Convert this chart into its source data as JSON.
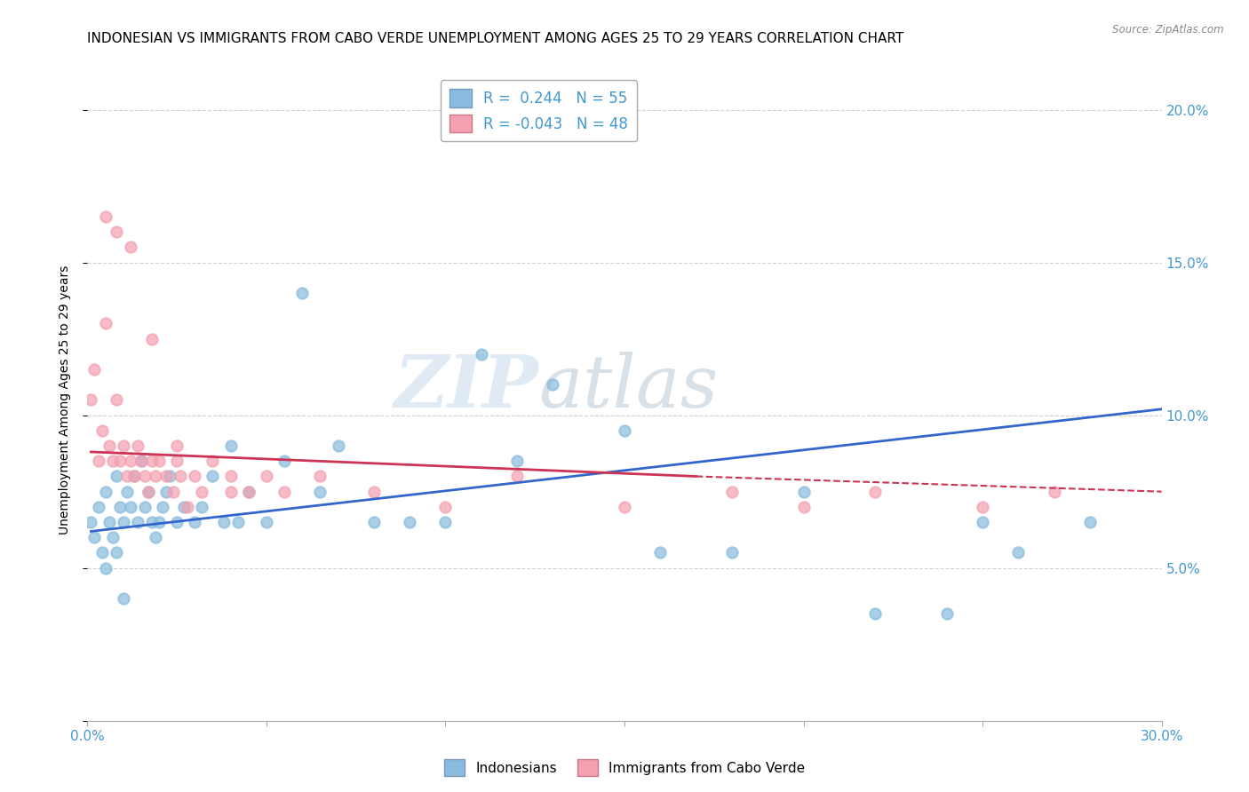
{
  "title": "INDONESIAN VS IMMIGRANTS FROM CABO VERDE UNEMPLOYMENT AMONG AGES 25 TO 29 YEARS CORRELATION CHART",
  "source": "Source: ZipAtlas.com",
  "xlabel_legend_1": "Indonesians",
  "xlabel_legend_2": "Immigrants from Cabo Verde",
  "ylabel": "Unemployment Among Ages 25 to 29 years",
  "r1": 0.244,
  "n1": 55,
  "r2": -0.043,
  "n2": 48,
  "color1": "#88bbdd",
  "color2": "#f4a0b0",
  "trendline1_color": "#3366cc",
  "trendline2_color": "#cc3355",
  "xlim": [
    0.0,
    0.3
  ],
  "ylim": [
    0.0,
    0.21
  ],
  "yticks": [
    0.0,
    0.05,
    0.1,
    0.15,
    0.2
  ],
  "ytick_labels_right": [
    "",
    "5.0%",
    "10.0%",
    "15.0%",
    "20.0%"
  ],
  "xticks": [
    0.0,
    0.05,
    0.1,
    0.15,
    0.2,
    0.25,
    0.3
  ],
  "xtick_labels": [
    "0.0%",
    "",
    "",
    "",
    "",
    "",
    "30.0%"
  ],
  "watermark_zip": "ZIP",
  "watermark_atlas": "atlas",
  "indonesians_x": [
    0.001,
    0.002,
    0.003,
    0.004,
    0.005,
    0.005,
    0.006,
    0.007,
    0.008,
    0.008,
    0.009,
    0.01,
    0.01,
    0.011,
    0.012,
    0.013,
    0.014,
    0.015,
    0.016,
    0.017,
    0.018,
    0.019,
    0.02,
    0.021,
    0.022,
    0.023,
    0.025,
    0.027,
    0.03,
    0.032,
    0.035,
    0.038,
    0.04,
    0.042,
    0.045,
    0.05,
    0.055,
    0.06,
    0.065,
    0.07,
    0.08,
    0.09,
    0.1,
    0.11,
    0.12,
    0.13,
    0.15,
    0.16,
    0.18,
    0.2,
    0.22,
    0.24,
    0.25,
    0.26,
    0.28
  ],
  "indonesians_y": [
    0.065,
    0.06,
    0.07,
    0.055,
    0.075,
    0.05,
    0.065,
    0.06,
    0.08,
    0.055,
    0.07,
    0.065,
    0.04,
    0.075,
    0.07,
    0.08,
    0.065,
    0.085,
    0.07,
    0.075,
    0.065,
    0.06,
    0.065,
    0.07,
    0.075,
    0.08,
    0.065,
    0.07,
    0.065,
    0.07,
    0.08,
    0.065,
    0.09,
    0.065,
    0.075,
    0.065,
    0.085,
    0.14,
    0.075,
    0.09,
    0.065,
    0.065,
    0.065,
    0.12,
    0.085,
    0.11,
    0.095,
    0.055,
    0.055,
    0.075,
    0.035,
    0.035,
    0.065,
    0.055,
    0.065
  ],
  "caboverde_x": [
    0.001,
    0.002,
    0.003,
    0.004,
    0.005,
    0.006,
    0.007,
    0.008,
    0.009,
    0.01,
    0.011,
    0.012,
    0.013,
    0.014,
    0.015,
    0.016,
    0.017,
    0.018,
    0.019,
    0.02,
    0.022,
    0.024,
    0.025,
    0.026,
    0.028,
    0.03,
    0.032,
    0.035,
    0.04,
    0.045,
    0.05,
    0.055,
    0.065,
    0.08,
    0.1,
    0.12,
    0.15,
    0.18,
    0.2,
    0.22,
    0.25,
    0.27,
    0.005,
    0.008,
    0.012,
    0.018,
    0.025,
    0.04
  ],
  "caboverde_y": [
    0.105,
    0.115,
    0.085,
    0.095,
    0.13,
    0.09,
    0.085,
    0.105,
    0.085,
    0.09,
    0.08,
    0.085,
    0.08,
    0.09,
    0.085,
    0.08,
    0.075,
    0.085,
    0.08,
    0.085,
    0.08,
    0.075,
    0.085,
    0.08,
    0.07,
    0.08,
    0.075,
    0.085,
    0.075,
    0.075,
    0.08,
    0.075,
    0.08,
    0.075,
    0.07,
    0.08,
    0.07,
    0.075,
    0.07,
    0.075,
    0.07,
    0.075,
    0.165,
    0.16,
    0.155,
    0.125,
    0.09,
    0.08
  ],
  "trendline1_x": [
    0.001,
    0.3
  ],
  "trendline1_y": [
    0.062,
    0.102
  ],
  "trendline2_x": [
    0.001,
    0.17,
    0.3
  ],
  "trendline2_y": [
    0.088,
    0.08,
    0.075
  ],
  "background_color": "#ffffff",
  "grid_color": "#cccccc",
  "tick_color": "#4499cc",
  "title_fontsize": 11,
  "axis_label_fontsize": 10
}
